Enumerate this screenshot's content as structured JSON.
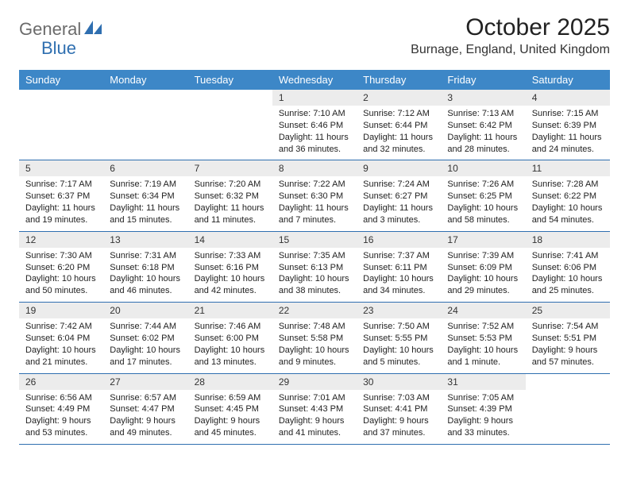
{
  "logo": {
    "part1": "General",
    "part2": "Blue"
  },
  "title": "October 2025",
  "location": "Burnage, England, United Kingdom",
  "colors": {
    "header_bg": "#3d87c7",
    "header_text": "#ffffff",
    "border": "#2f6fb0",
    "daynum_bg": "#ececec",
    "logo_gray": "#6b6b6b",
    "logo_blue": "#2f6fb0"
  },
  "weekdays": [
    "Sunday",
    "Monday",
    "Tuesday",
    "Wednesday",
    "Thursday",
    "Friday",
    "Saturday"
  ],
  "weeks": [
    [
      {
        "n": "",
        "sr": "",
        "ss": "",
        "dl": ""
      },
      {
        "n": "",
        "sr": "",
        "ss": "",
        "dl": ""
      },
      {
        "n": "",
        "sr": "",
        "ss": "",
        "dl": ""
      },
      {
        "n": "1",
        "sr": "Sunrise: 7:10 AM",
        "ss": "Sunset: 6:46 PM",
        "dl": "Daylight: 11 hours and 36 minutes."
      },
      {
        "n": "2",
        "sr": "Sunrise: 7:12 AM",
        "ss": "Sunset: 6:44 PM",
        "dl": "Daylight: 11 hours and 32 minutes."
      },
      {
        "n": "3",
        "sr": "Sunrise: 7:13 AM",
        "ss": "Sunset: 6:42 PM",
        "dl": "Daylight: 11 hours and 28 minutes."
      },
      {
        "n": "4",
        "sr": "Sunrise: 7:15 AM",
        "ss": "Sunset: 6:39 PM",
        "dl": "Daylight: 11 hours and 24 minutes."
      }
    ],
    [
      {
        "n": "5",
        "sr": "Sunrise: 7:17 AM",
        "ss": "Sunset: 6:37 PM",
        "dl": "Daylight: 11 hours and 19 minutes."
      },
      {
        "n": "6",
        "sr": "Sunrise: 7:19 AM",
        "ss": "Sunset: 6:34 PM",
        "dl": "Daylight: 11 hours and 15 minutes."
      },
      {
        "n": "7",
        "sr": "Sunrise: 7:20 AM",
        "ss": "Sunset: 6:32 PM",
        "dl": "Daylight: 11 hours and 11 minutes."
      },
      {
        "n": "8",
        "sr": "Sunrise: 7:22 AM",
        "ss": "Sunset: 6:30 PM",
        "dl": "Daylight: 11 hours and 7 minutes."
      },
      {
        "n": "9",
        "sr": "Sunrise: 7:24 AM",
        "ss": "Sunset: 6:27 PM",
        "dl": "Daylight: 11 hours and 3 minutes."
      },
      {
        "n": "10",
        "sr": "Sunrise: 7:26 AM",
        "ss": "Sunset: 6:25 PM",
        "dl": "Daylight: 10 hours and 58 minutes."
      },
      {
        "n": "11",
        "sr": "Sunrise: 7:28 AM",
        "ss": "Sunset: 6:22 PM",
        "dl": "Daylight: 10 hours and 54 minutes."
      }
    ],
    [
      {
        "n": "12",
        "sr": "Sunrise: 7:30 AM",
        "ss": "Sunset: 6:20 PM",
        "dl": "Daylight: 10 hours and 50 minutes."
      },
      {
        "n": "13",
        "sr": "Sunrise: 7:31 AM",
        "ss": "Sunset: 6:18 PM",
        "dl": "Daylight: 10 hours and 46 minutes."
      },
      {
        "n": "14",
        "sr": "Sunrise: 7:33 AM",
        "ss": "Sunset: 6:16 PM",
        "dl": "Daylight: 10 hours and 42 minutes."
      },
      {
        "n": "15",
        "sr": "Sunrise: 7:35 AM",
        "ss": "Sunset: 6:13 PM",
        "dl": "Daylight: 10 hours and 38 minutes."
      },
      {
        "n": "16",
        "sr": "Sunrise: 7:37 AM",
        "ss": "Sunset: 6:11 PM",
        "dl": "Daylight: 10 hours and 34 minutes."
      },
      {
        "n": "17",
        "sr": "Sunrise: 7:39 AM",
        "ss": "Sunset: 6:09 PM",
        "dl": "Daylight: 10 hours and 29 minutes."
      },
      {
        "n": "18",
        "sr": "Sunrise: 7:41 AM",
        "ss": "Sunset: 6:06 PM",
        "dl": "Daylight: 10 hours and 25 minutes."
      }
    ],
    [
      {
        "n": "19",
        "sr": "Sunrise: 7:42 AM",
        "ss": "Sunset: 6:04 PM",
        "dl": "Daylight: 10 hours and 21 minutes."
      },
      {
        "n": "20",
        "sr": "Sunrise: 7:44 AM",
        "ss": "Sunset: 6:02 PM",
        "dl": "Daylight: 10 hours and 17 minutes."
      },
      {
        "n": "21",
        "sr": "Sunrise: 7:46 AM",
        "ss": "Sunset: 6:00 PM",
        "dl": "Daylight: 10 hours and 13 minutes."
      },
      {
        "n": "22",
        "sr": "Sunrise: 7:48 AM",
        "ss": "Sunset: 5:58 PM",
        "dl": "Daylight: 10 hours and 9 minutes."
      },
      {
        "n": "23",
        "sr": "Sunrise: 7:50 AM",
        "ss": "Sunset: 5:55 PM",
        "dl": "Daylight: 10 hours and 5 minutes."
      },
      {
        "n": "24",
        "sr": "Sunrise: 7:52 AM",
        "ss": "Sunset: 5:53 PM",
        "dl": "Daylight: 10 hours and 1 minute."
      },
      {
        "n": "25",
        "sr": "Sunrise: 7:54 AM",
        "ss": "Sunset: 5:51 PM",
        "dl": "Daylight: 9 hours and 57 minutes."
      }
    ],
    [
      {
        "n": "26",
        "sr": "Sunrise: 6:56 AM",
        "ss": "Sunset: 4:49 PM",
        "dl": "Daylight: 9 hours and 53 minutes."
      },
      {
        "n": "27",
        "sr": "Sunrise: 6:57 AM",
        "ss": "Sunset: 4:47 PM",
        "dl": "Daylight: 9 hours and 49 minutes."
      },
      {
        "n": "28",
        "sr": "Sunrise: 6:59 AM",
        "ss": "Sunset: 4:45 PM",
        "dl": "Daylight: 9 hours and 45 minutes."
      },
      {
        "n": "29",
        "sr": "Sunrise: 7:01 AM",
        "ss": "Sunset: 4:43 PM",
        "dl": "Daylight: 9 hours and 41 minutes."
      },
      {
        "n": "30",
        "sr": "Sunrise: 7:03 AM",
        "ss": "Sunset: 4:41 PM",
        "dl": "Daylight: 9 hours and 37 minutes."
      },
      {
        "n": "31",
        "sr": "Sunrise: 7:05 AM",
        "ss": "Sunset: 4:39 PM",
        "dl": "Daylight: 9 hours and 33 minutes."
      },
      {
        "n": "",
        "sr": "",
        "ss": "",
        "dl": ""
      }
    ]
  ]
}
